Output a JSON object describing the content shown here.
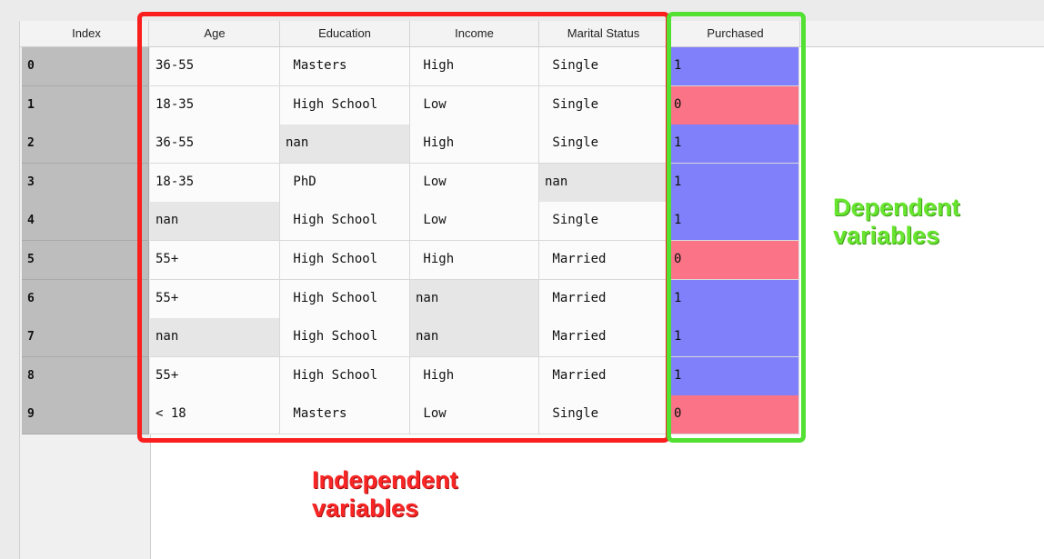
{
  "table": {
    "columns": [
      "Index",
      "Age",
      "Education",
      "Income",
      "Marital Status",
      "Purchased"
    ],
    "rows": [
      {
        "index": "0",
        "age": "36-55",
        "education": " Masters",
        "income": " High",
        "marital": " Single",
        "purchased": "1"
      },
      {
        "index": "1",
        "age": "18-35",
        "education": " High School",
        "income": " Low",
        "marital": " Single",
        "purchased": "0"
      },
      {
        "index": "2",
        "age": "36-55",
        "education": "nan",
        "income": " High",
        "marital": " Single",
        "purchased": "1"
      },
      {
        "index": "3",
        "age": "18-35",
        "education": " PhD",
        "income": " Low",
        "marital": "nan",
        "purchased": "1"
      },
      {
        "index": "4",
        "age": "nan",
        "education": " High School",
        "income": " Low",
        "marital": " Single",
        "purchased": "1"
      },
      {
        "index": "5",
        "age": "55+",
        "education": " High School",
        "income": " High",
        "marital": " Married",
        "purchased": "0"
      },
      {
        "index": "6",
        "age": "55+",
        "education": " High School",
        "income": "nan",
        "marital": " Married",
        "purchased": "1"
      },
      {
        "index": "7",
        "age": "nan",
        "education": " High School",
        "income": "nan",
        "marital": " Married",
        "purchased": "1"
      },
      {
        "index": "8",
        "age": "55+",
        "education": " High School",
        "income": " High",
        "marital": " Married",
        "purchased": "1"
      },
      {
        "index": "9",
        "age": "< 18",
        "education": " Masters",
        "income": " Low",
        "marital": " Single",
        "purchased": "0"
      }
    ]
  },
  "annotations": {
    "dependent": "Dependent\nvariables",
    "independent": "Independent\nvariables"
  },
  "colors": {
    "purchased_1": "#8080fb",
    "purchased_0": "#fb7387",
    "independent_box": "#fa1e1e",
    "dependent_box": "#52e033"
  }
}
